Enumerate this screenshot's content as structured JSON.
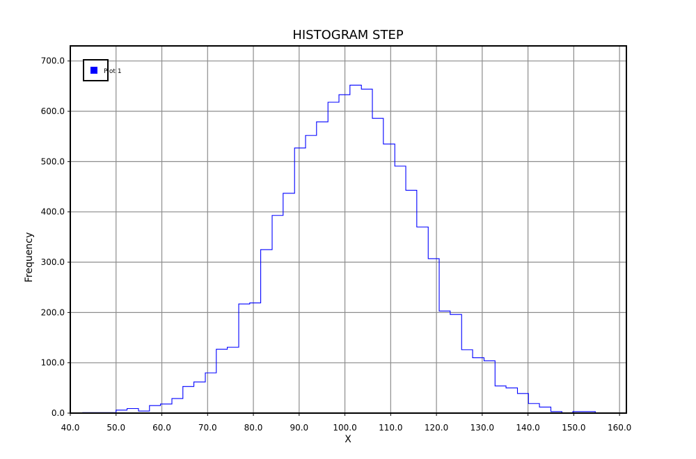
{
  "chart_data": {
    "type": "histogram-step",
    "title": "HISTOGRAM STEP",
    "xlabel": "X",
    "ylabel": "Frequency",
    "xlim": [
      40,
      161.5
    ],
    "ylim": [
      0,
      730
    ],
    "xticks": [
      40,
      50,
      60,
      70,
      80,
      90,
      100,
      110,
      120,
      130,
      140,
      150,
      160
    ],
    "xtick_labels": [
      "40.0",
      "50.0",
      "60.0",
      "70.0",
      "80.0",
      "90.0",
      "100.0",
      "110.0",
      "120.0",
      "130.0",
      "140.0",
      "150.0",
      "160.0"
    ],
    "yticks": [
      0,
      100,
      200,
      300,
      400,
      500,
      600,
      700
    ],
    "ytick_labels": [
      "0.0",
      "100.0",
      "200.0",
      "300.0",
      "400.0",
      "500.0",
      "600.0",
      "700.0"
    ],
    "grid": true,
    "legend": {
      "position": "top-left",
      "entries": [
        "Plot 1"
      ]
    },
    "series": [
      {
        "name": "Plot 1",
        "color": "#0000ff",
        "bin_edges": [
          42.7,
          45.1,
          47.5,
          50.0,
          52.4,
          54.9,
          57.3,
          59.7,
          62.2,
          64.6,
          67.0,
          69.5,
          71.9,
          74.3,
          76.8,
          79.2,
          81.6,
          84.1,
          86.5,
          89.0,
          91.4,
          93.8,
          96.3,
          98.7,
          101.1,
          103.6,
          106.0,
          108.4,
          110.9,
          113.3,
          115.7,
          118.2,
          120.6,
          123.0,
          125.5,
          127.9,
          130.4,
          132.8,
          135.2,
          137.7,
          140.1,
          142.5,
          145.0,
          147.4,
          149.8,
          152.3,
          154.7,
          157.1,
          159.6
        ],
        "counts": [
          1,
          1,
          1,
          6,
          9,
          4,
          15,
          18,
          29,
          53,
          62,
          80,
          127,
          131,
          217,
          219,
          325,
          393,
          437,
          527,
          552,
          579,
          618,
          633,
          652,
          644,
          586,
          535,
          491,
          443,
          370,
          307,
          203,
          196,
          126,
          110,
          104,
          54,
          50,
          39,
          19,
          12,
          3,
          0,
          3,
          3,
          0,
          0
        ]
      }
    ]
  }
}
